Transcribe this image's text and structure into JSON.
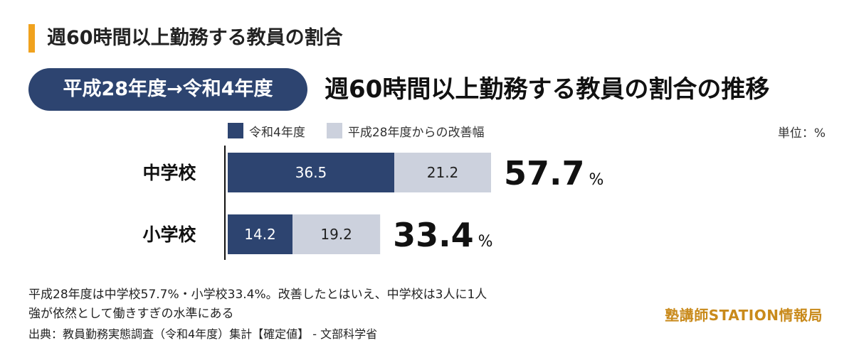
{
  "header": {
    "title": "週60時間以上勤務する教員の割合"
  },
  "banner": {
    "period": "平成28年度→令和4年度",
    "title": "週60時間以上勤務する教員の割合の推移"
  },
  "unit_label": "単位：%",
  "colors": {
    "accent": "#f0a21e",
    "current": "#2d4470",
    "improvement": "#ccd1dd",
    "bar_text_current": "#ffffff",
    "bar_text_improvement": "#222222"
  },
  "chart_data": {
    "type": "bar",
    "orientation": "horizontal",
    "stacked": true,
    "categories": [
      "中学校",
      "小学校"
    ],
    "series": [
      {
        "name": "令和4年度",
        "values": [
          36.5,
          14.2
        ]
      },
      {
        "name": "平成28年度からの改善幅",
        "values": [
          21.2,
          19.2
        ]
      }
    ],
    "totals": [
      57.7,
      33.4
    ],
    "total_suffix": "%",
    "legend_position": "top",
    "grid": false
  },
  "footnote": {
    "line1": "平成28年度は中学校57.7%・小学校33.4%。改善したとはいえ、中学校は3人に1人",
    "line2": "強が依然として働きすぎの水準にある"
  },
  "source": "出典：教員勤務実態調査（令和4年度）集計【確定値】 - 文部科学省",
  "logo": "塾講師STATION情報局"
}
